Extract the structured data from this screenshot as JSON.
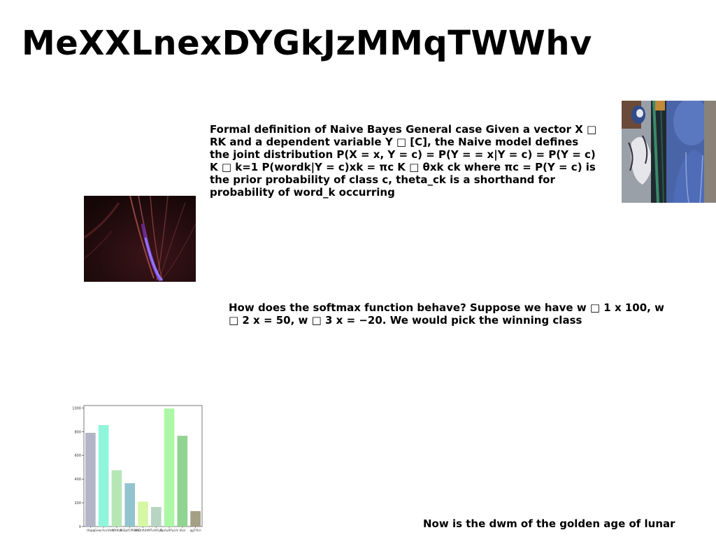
{
  "slide": {
    "title": "MeXXLnexDYGkJzMMqTWWhv",
    "paragraph_1": "Formal definition of Naive Bayes General case Given a vector X □ RK and a dependent variable Y □ [C], the Naive model defines the joint distribution P(X = x, Y = c) = P(Y = = x|Y = c) = P(Y = c) K □ k=1 P(wordk|Y = c)xk = πc K □ θxk ck where πc = P(Y = c) is the prior probability of class c, theta_ck is a shorthand for probability of word_k occurring",
    "paragraph_2": "How does the softmax function behave? Suppose we have w □ 1 x 100, w □ 2 x = 50, w □ 3 x = −20. We would pick the winning class",
    "paragraph_3": "Now is the dwm of the  golden age of lunar"
  },
  "chart_data": {
    "type": "bar",
    "categories": [
      "tXqio",
      "qGewrXcsVHrV",
      "WXKUt",
      "BSSpfCPRKAF",
      "MiQhfUtMF",
      "TvtXFyB",
      "DpAuRPuzrV",
      "XksI",
      "qgTYkrl"
    ],
    "values": [
      790,
      855,
      475,
      365,
      210,
      165,
      995,
      765,
      130
    ],
    "colors": [
      "#b3b5c6",
      "#8ff5db",
      "#b6e6b6",
      "#92c4cf",
      "#d6f7a3",
      "#b8d4c3",
      "#abf7a5",
      "#91d391",
      "#a59f86"
    ],
    "yticks": [
      0,
      200,
      400,
      600,
      800,
      1000
    ],
    "ylim": [
      0,
      1020
    ],
    "title": "",
    "xlabel": "",
    "ylabel": ""
  }
}
